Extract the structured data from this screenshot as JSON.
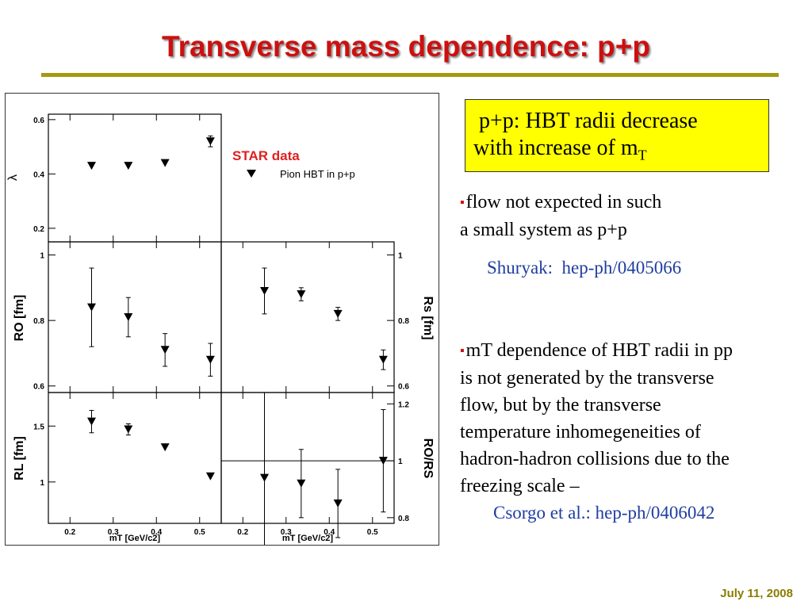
{
  "slide": {
    "title": "Transverse mass dependence: p+p",
    "date": "July 11, 2008"
  },
  "highlight_box": {
    "line1": " p+p: HBT radii decrease",
    "line2": "with increase of m",
    "line2_sub": "T"
  },
  "bullets": [
    {
      "lines": [
        "flow not expected in such",
        "a small system as p+p"
      ]
    },
    {
      "lines": [
        "mT dependence of HBT radii in pp",
        "is not generated by the transverse",
        "flow, but by the transverse",
        "temperature inhomegeneities of",
        "hadron-hadron collisions due to the",
        "freezing scale –"
      ]
    }
  ],
  "refs": {
    "shuryak": "Shuryak:  hep-ph/0405066",
    "csorgo": "Csorgo et al.: hep-ph/0406042"
  },
  "figure": {
    "star_label": "STAR data",
    "legend_entry": "Pion HBT in p+p"
  },
  "chart_data": [
    {
      "type": "scatter",
      "panel": "lambda",
      "ylabel": "λ",
      "xlabel": "",
      "xlim": [
        0.15,
        0.55
      ],
      "ylim": [
        0.15,
        0.62
      ],
      "yticks": [
        "0.2",
        "0.4",
        "0.6"
      ],
      "series": [
        {
          "name": "Pion HBT in p+p",
          "x": [
            0.25,
            0.335,
            0.42,
            0.525
          ],
          "y": [
            0.43,
            0.43,
            0.44,
            0.52
          ],
          "err": [
            0,
            0,
            0,
            0.02
          ]
        }
      ]
    },
    {
      "type": "scatter",
      "panel": "R_O",
      "ylabel": "RO [fm]",
      "xlabel": "",
      "xlim": [
        0.15,
        0.55
      ],
      "ylim": [
        0.58,
        1.04
      ],
      "yticks": [
        "0.6",
        "0.8",
        "1"
      ],
      "series": [
        {
          "name": "Pion HBT in p+p",
          "x": [
            0.25,
            0.335,
            0.42,
            0.525
          ],
          "y": [
            0.84,
            0.81,
            0.71,
            0.68
          ],
          "err": [
            0.12,
            0.06,
            0.05,
            0.05
          ]
        }
      ]
    },
    {
      "type": "scatter",
      "panel": "R_s",
      "ylabel": "Rs [fm]",
      "xlabel": "",
      "xlim": [
        0.15,
        0.55
      ],
      "ylim": [
        0.58,
        1.04
      ],
      "yticks": [
        "0.6",
        "0.8",
        "1"
      ],
      "series": [
        {
          "name": "Pion HBT in p+p",
          "x": [
            0.25,
            0.335,
            0.42,
            0.525
          ],
          "y": [
            0.89,
            0.88,
            0.82,
            0.68
          ],
          "err": [
            0.07,
            0.02,
            0.02,
            0.03
          ]
        }
      ]
    },
    {
      "type": "scatter",
      "panel": "R_L",
      "ylabel": "RL [fm]",
      "xlabel": "mT [GeV/c2]",
      "xlim": [
        0.15,
        0.55
      ],
      "ylim": [
        0.63,
        1.8
      ],
      "yticks": [
        "1",
        "1.5"
      ],
      "xticks": [
        "0.2",
        "0.3",
        "0.4",
        "0.5"
      ],
      "series": [
        {
          "name": "Pion HBT in p+p",
          "x": [
            0.25,
            0.335,
            0.42,
            0.525
          ],
          "y": [
            1.54,
            1.47,
            1.31,
            1.05
          ],
          "err": [
            0.1,
            0.05,
            0,
            0
          ]
        }
      ]
    },
    {
      "type": "scatter",
      "panel": "R_O/R_S",
      "ylabel": "RO/RS",
      "xlabel": "mT [GeV/c2]",
      "xlim": [
        0.15,
        0.55
      ],
      "ylim": [
        0.78,
        1.24
      ],
      "yticks": [
        "0.8",
        "1",
        "1.2"
      ],
      "xticks": [
        "0.2",
        "0.3",
        "0.4",
        "0.5"
      ],
      "reference_line": 1.0,
      "series": [
        {
          "name": "Pion HBT in p+p",
          "x": [
            0.25,
            0.335,
            0.42,
            0.525
          ],
          "y": [
            0.94,
            0.92,
            0.85,
            1.0
          ],
          "err": [
            0.3,
            0.12,
            0.12,
            0.18
          ]
        }
      ]
    }
  ]
}
